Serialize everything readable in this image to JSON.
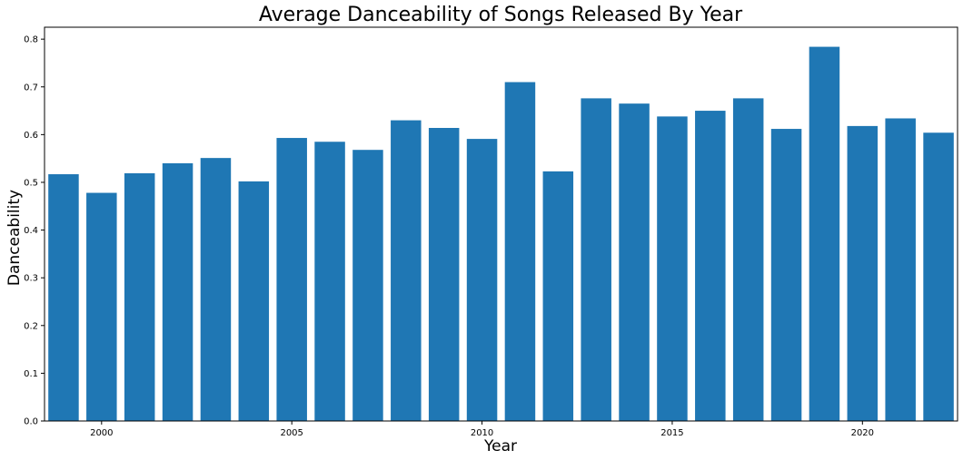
{
  "chart_data": {
    "type": "bar",
    "title": "Average Danceability of Songs Released By Year",
    "xlabel": "Year",
    "ylabel": "Danceability",
    "x_ticks": [
      2000,
      2005,
      2010,
      2015,
      2020
    ],
    "y_ticks": [
      "0.0",
      "0.1",
      "0.2",
      "0.3",
      "0.4",
      "0.5",
      "0.6",
      "0.7",
      "0.8"
    ],
    "xlim": [
      1998.5,
      2022.5
    ],
    "ylim": [
      0,
      0.825
    ],
    "grid": false,
    "bar_color": "#1f77b4",
    "x": [
      1999,
      2000,
      2001,
      2002,
      2003,
      2004,
      2005,
      2006,
      2007,
      2008,
      2009,
      2010,
      2011,
      2012,
      2013,
      2014,
      2015,
      2016,
      2017,
      2018,
      2019,
      2020,
      2021,
      2022
    ],
    "values": [
      0.517,
      0.478,
      0.519,
      0.54,
      0.551,
      0.502,
      0.593,
      0.585,
      0.568,
      0.63,
      0.614,
      0.591,
      0.71,
      0.523,
      0.676,
      0.665,
      0.638,
      0.65,
      0.676,
      0.612,
      0.784,
      0.618,
      0.634,
      0.604
    ]
  }
}
